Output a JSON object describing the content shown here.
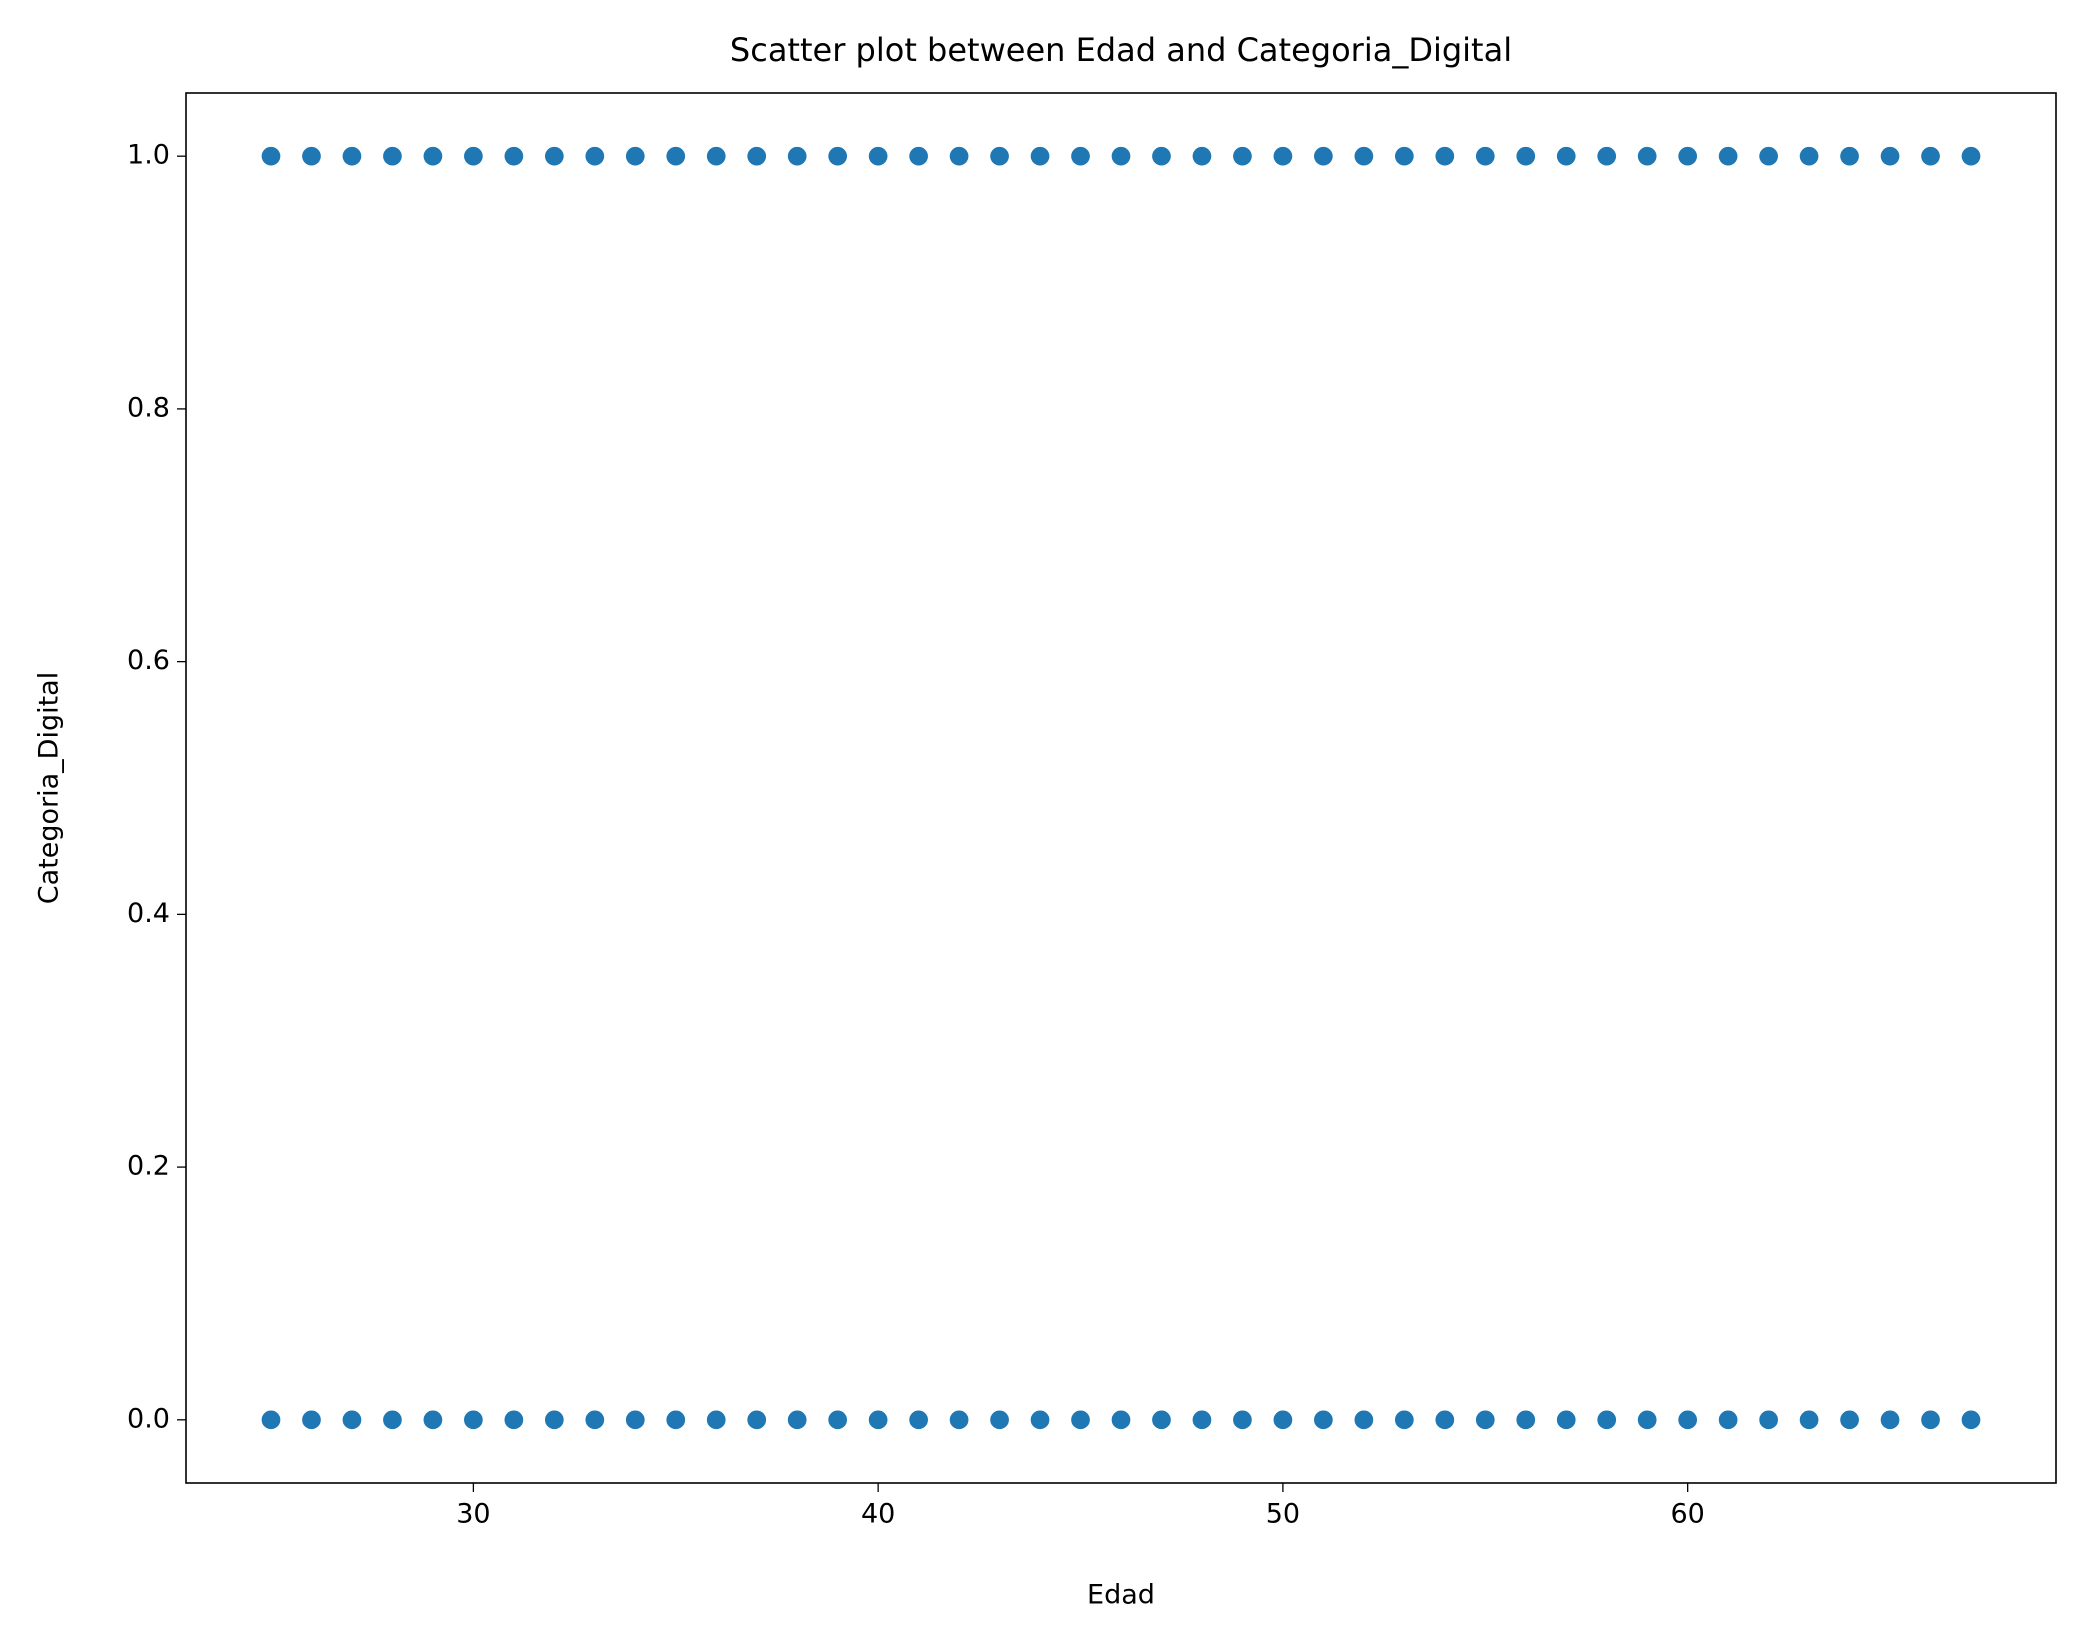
{
  "chart_data": {
    "type": "scatter",
    "title": "Scatter plot between Edad and Categoria_Digital",
    "x_label": "Edad",
    "y_label": "Categoria_Digital",
    "color": "#1f77b4",
    "x": [
      25,
      26,
      27,
      28,
      29,
      30,
      31,
      32,
      33,
      34,
      35,
      36,
      37,
      38,
      39,
      40,
      41,
      42,
      43,
      44,
      45,
      46,
      47,
      48,
      49,
      50,
      51,
      52,
      53,
      54,
      55,
      56,
      57,
      58,
      59,
      60,
      61,
      62,
      63,
      64,
      65,
      66,
      67,
      25,
      26,
      27,
      28,
      29,
      30,
      31,
      32,
      33,
      34,
      35,
      36,
      37,
      38,
      39,
      40,
      41,
      42,
      43,
      44,
      45,
      46,
      47,
      48,
      49,
      50,
      51,
      52,
      53,
      54,
      55,
      56,
      57,
      58,
      59,
      60,
      61,
      62,
      63,
      64,
      65,
      66,
      67
    ],
    "values": [
      1,
      1,
      1,
      1,
      1,
      1,
      1,
      1,
      1,
      1,
      1,
      1,
      1,
      1,
      1,
      1,
      1,
      1,
      1,
      1,
      1,
      1,
      1,
      1,
      1,
      1,
      1,
      1,
      1,
      1,
      1,
      1,
      1,
      1,
      1,
      1,
      1,
      1,
      1,
      1,
      1,
      1,
      1,
      0,
      0,
      0,
      0,
      0,
      0,
      0,
      0,
      0,
      0,
      0,
      0,
      0,
      0,
      0,
      0,
      0,
      0,
      0,
      0,
      0,
      0,
      0,
      0,
      0,
      0,
      0,
      0,
      0,
      0,
      0,
      0,
      0,
      0,
      0,
      0,
      0,
      0,
      0,
      0,
      0,
      0,
      0
    ],
    "xlim": [
      22.9,
      69.1
    ],
    "ylim": [
      -0.05,
      1.05
    ],
    "xticks": [
      30,
      40,
      50,
      60
    ],
    "yticks": [
      {
        "value": 0,
        "label": "0.0"
      },
      {
        "value": 0.2,
        "label": "0.2"
      },
      {
        "value": 0.4,
        "label": "0.4"
      },
      {
        "value": 0.6,
        "label": "0.6"
      },
      {
        "value": 0.8,
        "label": "0.8"
      },
      {
        "value": 1,
        "label": "1.0"
      }
    ],
    "grid": false
  }
}
